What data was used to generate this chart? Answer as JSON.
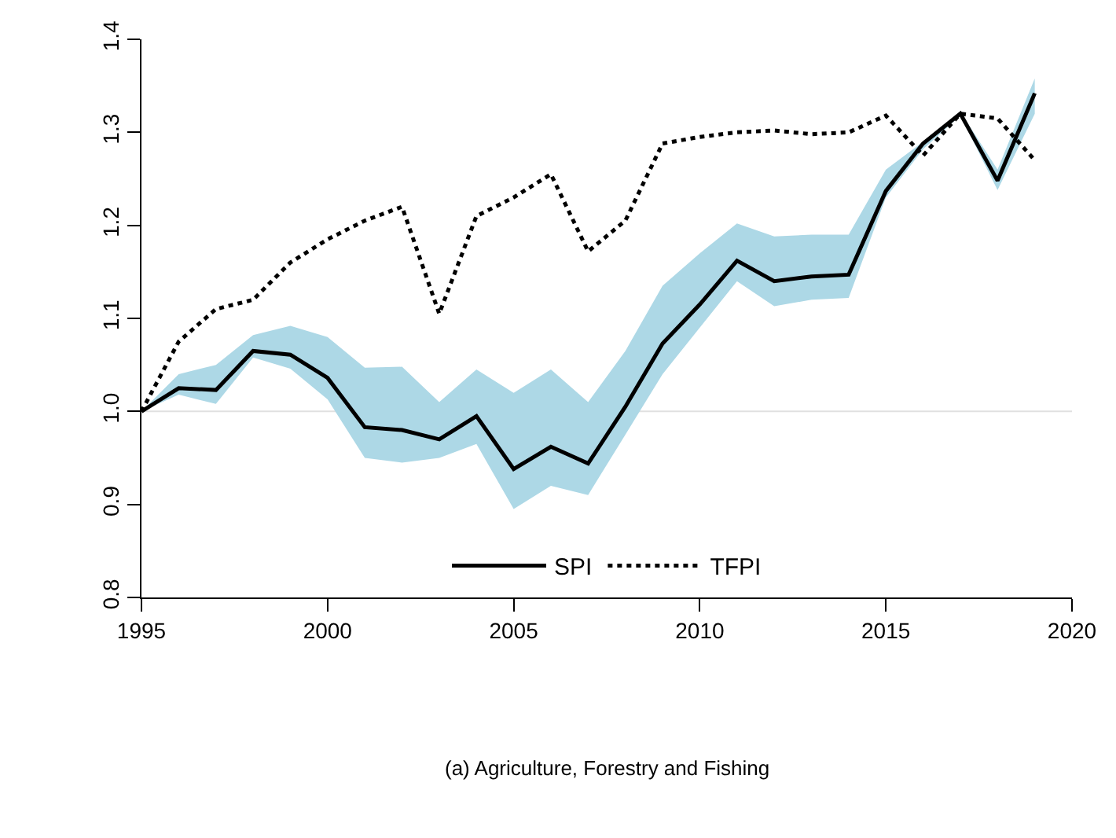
{
  "chart_data": {
    "type": "line",
    "annotations": [
      "(a) Agriculture, Forestry and Fishing"
    ],
    "x": [
      1995,
      1996,
      1997,
      1998,
      1999,
      2000,
      2001,
      2002,
      2003,
      2004,
      2005,
      2006,
      2007,
      2008,
      2009,
      2010,
      2011,
      2012,
      2013,
      2014,
      2015,
      2016,
      2017,
      2018,
      2019
    ],
    "series": [
      {
        "name": "SPI",
        "color": "#000000",
        "line_style": "solid",
        "values": [
          1.0,
          1.025,
          1.023,
          1.065,
          1.061,
          1.036,
          0.983,
          0.98,
          0.97,
          0.995,
          0.938,
          0.962,
          0.944,
          1.005,
          1.073,
          1.115,
          1.162,
          1.14,
          1.145,
          1.147,
          1.237,
          1.288,
          1.32,
          1.248,
          1.342
        ],
        "upper": [
          1.0,
          1.04,
          1.05,
          1.082,
          1.092,
          1.08,
          1.047,
          1.048,
          1.01,
          1.045,
          1.02,
          1.045,
          1.01,
          1.065,
          1.135,
          1.17,
          1.202,
          1.188,
          1.19,
          1.19,
          1.26,
          1.29,
          1.322,
          1.26,
          1.358
        ],
        "lower": [
          1.0,
          1.018,
          1.008,
          1.058,
          1.046,
          1.013,
          0.95,
          0.945,
          0.95,
          0.965,
          0.895,
          0.92,
          0.91,
          0.975,
          1.04,
          1.09,
          1.14,
          1.113,
          1.12,
          1.122,
          1.23,
          1.282,
          1.318,
          1.238,
          1.32
        ]
      },
      {
        "name": "TFPI",
        "color": "#000000",
        "line_style": "dotted",
        "values": [
          1.0,
          1.075,
          1.11,
          1.12,
          1.16,
          1.185,
          1.205,
          1.22,
          1.105,
          1.21,
          1.23,
          1.255,
          1.172,
          1.205,
          1.288,
          1.295,
          1.3,
          1.302,
          1.298,
          1.3,
          1.318,
          1.275,
          1.32,
          1.315,
          1.27
        ]
      }
    ],
    "xlim": [
      1995,
      2020
    ],
    "xticks": [
      1995,
      2000,
      2005,
      2010,
      2015,
      2020
    ],
    "ylim": [
      0.8,
      1.4
    ],
    "yticks": [
      0.8,
      0.9,
      {
        "value": 1,
        "label": "1.0"
      },
      1.1,
      1.2,
      1.3,
      1.4
    ],
    "ref_lines": [
      {
        "axis": "y",
        "value": 1.0,
        "color": "#e0e0e0"
      }
    ],
    "grid": false,
    "legend": "bottom",
    "marker": "none"
  }
}
